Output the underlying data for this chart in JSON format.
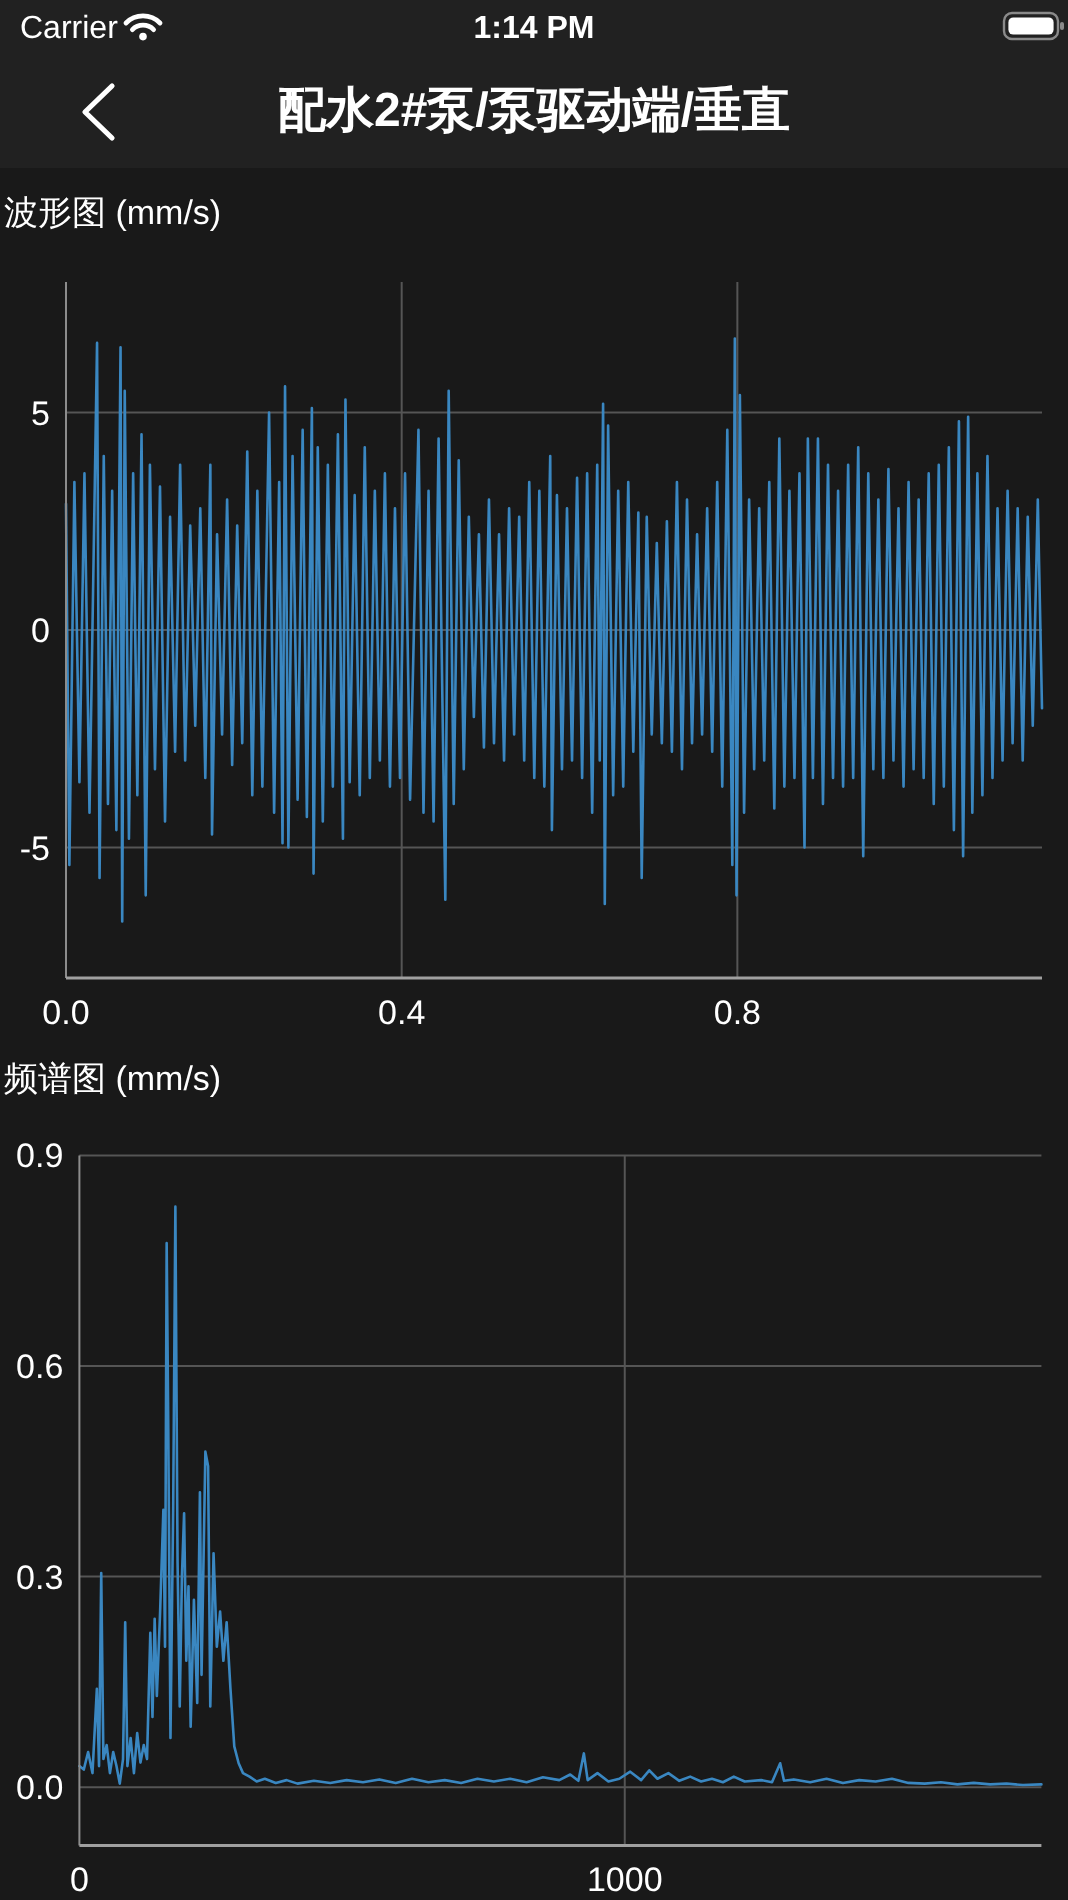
{
  "chart_data": [
    {
      "type": "line",
      "title": "配水2#泵/泵驱动端/垂直",
      "ylabel": "波形图 (mm/s)",
      "annotations": [
        "Carrier",
        "1:14 PM"
      ],
      "series": [
        {
          "color": "#3a87c1",
          "x": [
            0,
            0.004,
            0.01,
            0.016,
            0.022,
            0.028,
            0.037,
            0.04,
            0.045,
            0.05,
            0.055,
            0.06,
            0.065,
            0.067,
            0.07,
            0.075,
            0.08,
            0.085,
            0.09,
            0.095,
            0.1,
            0.106,
            0.112,
            0.118,
            0.124,
            0.13,
            0.136,
            0.142,
            0.148,
            0.154,
            0.16,
            0.166,
            0.172,
            0.174,
            0.18,
            0.186,
            0.192,
            0.198,
            0.204,
            0.21,
            0.216,
            0.222,
            0.228,
            0.234,
            0.242,
            0.248,
            0.254,
            0.258,
            0.261,
            0.265,
            0.27,
            0.276,
            0.282,
            0.287,
            0.293,
            0.295,
            0.3,
            0.306,
            0.312,
            0.318,
            0.324,
            0.33,
            0.333,
            0.338,
            0.344,
            0.35,
            0.356,
            0.362,
            0.368,
            0.374,
            0.38,
            0.386,
            0.392,
            0.398,
            0.404,
            0.41,
            0.42,
            0.426,
            0.432,
            0.438,
            0.444,
            0.452,
            0.456,
            0.462,
            0.468,
            0.474,
            0.48,
            0.486,
            0.492,
            0.498,
            0.504,
            0.51,
            0.516,
            0.522,
            0.528,
            0.534,
            0.54,
            0.546,
            0.552,
            0.558,
            0.564,
            0.57,
            0.577,
            0.579,
            0.585,
            0.591,
            0.597,
            0.603,
            0.609,
            0.615,
            0.621,
            0.627,
            0.633,
            0.636,
            0.64,
            0.642,
            0.646,
            0.652,
            0.658,
            0.664,
            0.67,
            0.676,
            0.682,
            0.686,
            0.692,
            0.698,
            0.704,
            0.71,
            0.716,
            0.722,
            0.728,
            0.734,
            0.74,
            0.746,
            0.752,
            0.758,
            0.764,
            0.77,
            0.776,
            0.782,
            0.788,
            0.794,
            0.797,
            0.799,
            0.803,
            0.808,
            0.814,
            0.82,
            0.826,
            0.832,
            0.838,
            0.844,
            0.85,
            0.856,
            0.862,
            0.868,
            0.874,
            0.88,
            0.884,
            0.89,
            0.896,
            0.902,
            0.908,
            0.914,
            0.92,
            0.926,
            0.932,
            0.938,
            0.944,
            0.95,
            0.956,
            0.962,
            0.968,
            0.974,
            0.98,
            0.986,
            0.992,
            0.998,
            1.004,
            1.01,
            1.016,
            1.022,
            1.028,
            1.034,
            1.04,
            1.046,
            1.052,
            1.058,
            1.064,
            1.069,
            1.075,
            1.08,
            1.086,
            1.092,
            1.098,
            1.104,
            1.11,
            1.116,
            1.122,
            1.128,
            1.134,
            1.14,
            1.146,
            1.152,
            1.158,
            1.163
          ],
          "values": [
            2.9,
            -5.4,
            3.4,
            -3.5,
            3.6,
            -4.2,
            6.6,
            -5.7,
            4.0,
            -4.0,
            3.2,
            -4.6,
            6.5,
            -6.7,
            5.5,
            -4.8,
            3.6,
            -3.8,
            4.5,
            -6.1,
            3.8,
            -3.2,
            3.3,
            -4.4,
            2.6,
            -2.8,
            3.8,
            -3.0,
            2.4,
            -2.2,
            2.8,
            -3.4,
            3.8,
            -4.7,
            2.2,
            -2.4,
            3.0,
            -3.1,
            2.4,
            -2.6,
            4.1,
            -3.8,
            3.2,
            -3.6,
            5.0,
            -4.2,
            3.4,
            -4.9,
            5.6,
            -5.0,
            4.0,
            -3.9,
            4.6,
            -4.3,
            5.1,
            -5.6,
            4.2,
            -4.4,
            3.8,
            -3.6,
            4.5,
            -4.8,
            5.3,
            -3.5,
            3.1,
            -3.8,
            4.2,
            -3.4,
            3.2,
            -3.0,
            3.6,
            -3.6,
            2.8,
            -3.4,
            3.6,
            -3.9,
            4.6,
            -4.2,
            3.2,
            -4.4,
            4.4,
            -6.2,
            5.5,
            -4.0,
            3.9,
            -3.2,
            2.6,
            -2.0,
            2.2,
            -2.7,
            3.0,
            -2.6,
            2.2,
            -3.0,
            2.8,
            -2.4,
            2.6,
            -3.0,
            3.4,
            -3.4,
            3.2,
            -3.6,
            4.0,
            -4.6,
            3.1,
            -3.2,
            2.8,
            -3.0,
            3.5,
            -3.4,
            3.6,
            -4.2,
            3.8,
            -3.0,
            5.2,
            -6.3,
            4.7,
            -3.8,
            3.2,
            -3.6,
            3.4,
            -2.8,
            2.7,
            -5.7,
            2.6,
            -2.4,
            2.0,
            -2.6,
            2.5,
            -2.8,
            3.4,
            -3.2,
            3.0,
            -2.6,
            2.2,
            -2.4,
            2.8,
            -2.8,
            3.4,
            -3.6,
            4.6,
            -5.4,
            6.7,
            -6.1,
            5.4,
            -4.2,
            3.0,
            -3.2,
            2.8,
            -3.0,
            3.4,
            -4.1,
            4.4,
            -3.6,
            3.2,
            -3.4,
            3.6,
            -5.0,
            4.4,
            -3.4,
            4.4,
            -4.0,
            3.8,
            -3.4,
            3.2,
            -3.6,
            3.8,
            -3.4,
            4.2,
            -5.2,
            3.6,
            -3.2,
            3.0,
            -3.4,
            3.7,
            -3.0,
            2.8,
            -3.6,
            3.4,
            -3.2,
            3.0,
            -3.4,
            3.6,
            -4.0,
            3.8,
            -3.6,
            4.2,
            -4.6,
            4.8,
            -5.2,
            4.9,
            -4.2,
            3.6,
            -3.8,
            4.0,
            -3.4,
            2.8,
            -3.0,
            3.2,
            -2.6,
            2.8,
            -3.0,
            2.6,
            -2.2,
            3.0,
            -1.8
          ]
        }
      ],
      "xlim": [
        0,
        1.163
      ],
      "ylim": [
        -8,
        8
      ],
      "xticks": [
        {
          "value": 0,
          "label": "0.0"
        },
        0.4,
        0.8
      ],
      "yticks": [
        -5,
        0,
        5
      ],
      "grid": true
    },
    {
      "type": "line",
      "ylabel": "频谱图 (mm/s)",
      "series": [
        {
          "color": "#3a87c1",
          "x": [
            0,
            8,
            16,
            24,
            32,
            36,
            40,
            44,
            50,
            56,
            62,
            68,
            74,
            80,
            84,
            88,
            94,
            100,
            106,
            112,
            118,
            124,
            130,
            134,
            138,
            142,
            148,
            154,
            157,
            160,
            163,
            167,
            172,
            176,
            180,
            184,
            188,
            192,
            196,
            200,
            204,
            210,
            216,
            221,
            224,
            231,
            236,
            240,
            246,
            252,
            258,
            264,
            270,
            277,
            284,
            292,
            300,
            312,
            325,
            340,
            360,
            380,
            400,
            430,
            460,
            490,
            520,
            550,
            580,
            610,
            640,
            670,
            700,
            730,
            760,
            790,
            820,
            850,
            880,
            900,
            915,
            925,
            932,
            950,
            970,
            990,
            1010,
            1030,
            1045,
            1060,
            1080,
            1100,
            1120,
            1140,
            1160,
            1180,
            1200,
            1220,
            1250,
            1270,
            1285,
            1292,
            1310,
            1340,
            1370,
            1400,
            1430,
            1460,
            1490,
            1520,
            1550,
            1580,
            1610,
            1640,
            1670,
            1700,
            1730,
            1764
          ],
          "values": [
            0.03,
            0.025,
            0.05,
            0.02,
            0.14,
            0.03,
            0.305,
            0.04,
            0.06,
            0.02,
            0.05,
            0.03,
            0.005,
            0.04,
            0.235,
            0.03,
            0.07,
            0.02,
            0.077,
            0.035,
            0.06,
            0.04,
            0.22,
            0.1,
            0.24,
            0.13,
            0.25,
            0.395,
            0.2,
            0.775,
            0.51,
            0.07,
            0.4,
            0.827,
            0.32,
            0.115,
            0.3,
            0.39,
            0.18,
            0.286,
            0.086,
            0.267,
            0.12,
            0.42,
            0.16,
            0.478,
            0.457,
            0.115,
            0.333,
            0.2,
            0.25,
            0.18,
            0.235,
            0.14,
            0.058,
            0.034,
            0.02,
            0.015,
            0.008,
            0.012,
            0.006,
            0.01,
            0.005,
            0.009,
            0.006,
            0.01,
            0.007,
            0.011,
            0.006,
            0.012,
            0.007,
            0.01,
            0.006,
            0.012,
            0.008,
            0.012,
            0.007,
            0.014,
            0.01,
            0.018,
            0.009,
            0.048,
            0.01,
            0.02,
            0.008,
            0.012,
            0.022,
            0.01,
            0.024,
            0.012,
            0.02,
            0.009,
            0.015,
            0.008,
            0.012,
            0.007,
            0.015,
            0.008,
            0.01,
            0.007,
            0.034,
            0.009,
            0.011,
            0.007,
            0.012,
            0.006,
            0.01,
            0.008,
            0.012,
            0.006,
            0.005,
            0.007,
            0.004,
            0.006,
            0.004,
            0.005,
            0.003,
            0.004
          ]
        }
      ],
      "xlim": [
        0,
        1764
      ],
      "ylim": [
        -0.083,
        0.9
      ],
      "xticks": [
        0,
        1000
      ],
      "yticks": [
        {
          "value": 0,
          "label": "0.0"
        },
        0.3,
        0.6,
        0.9
      ],
      "grid": true
    }
  ]
}
